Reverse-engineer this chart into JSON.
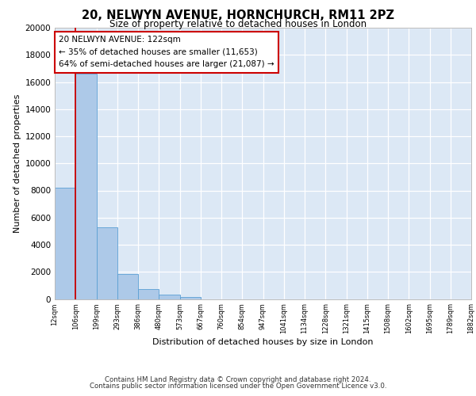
{
  "title1": "20, NELWYN AVENUE, HORNCHURCH, RM11 2PZ",
  "title2": "Size of property relative to detached houses in London",
  "xlabel": "Distribution of detached houses by size in London",
  "ylabel": "Number of detached properties",
  "bin_labels": [
    "12sqm",
    "106sqm",
    "199sqm",
    "293sqm",
    "386sqm",
    "480sqm",
    "573sqm",
    "667sqm",
    "760sqm",
    "854sqm",
    "947sqm",
    "1041sqm",
    "1134sqm",
    "1228sqm",
    "1321sqm",
    "1415sqm",
    "1508sqm",
    "1602sqm",
    "1695sqm",
    "1789sqm",
    "1882sqm"
  ],
  "bar_values": [
    8200,
    16600,
    5300,
    1850,
    750,
    300,
    150,
    0,
    0,
    0,
    0,
    0,
    0,
    0,
    0,
    0,
    0,
    0,
    0,
    0
  ],
  "bar_color": "#adc9e8",
  "bar_edge_color": "#5a9fd4",
  "vline_color": "#cc0000",
  "annotation_title": "20 NELWYN AVENUE: 122sqm",
  "annotation_line1": "← 35% of detached houses are smaller (11,653)",
  "annotation_line2": "64% of semi-detached houses are larger (21,087) →",
  "ylim": [
    0,
    20000
  ],
  "yticks": [
    0,
    2000,
    4000,
    6000,
    8000,
    10000,
    12000,
    14000,
    16000,
    18000,
    20000
  ],
  "footer1": "Contains HM Land Registry data © Crown copyright and database right 2024.",
  "footer2": "Contains public sector information licensed under the Open Government Licence v3.0.",
  "plot_background": "#dce8f5"
}
